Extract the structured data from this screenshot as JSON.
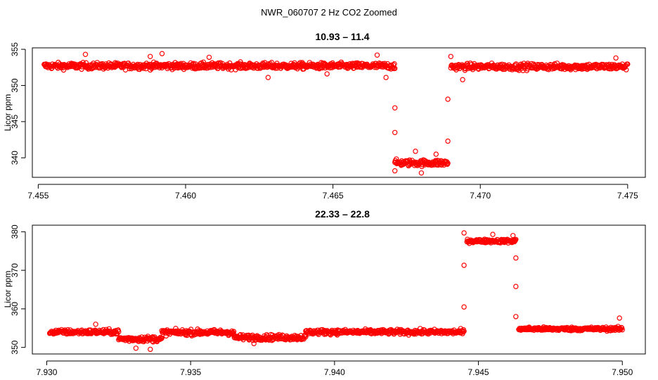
{
  "figure": {
    "title": "NWR_060707  2 Hz CO2 Zoomed",
    "marker_color": "#ff0000",
    "axis_color": "#000000",
    "background": "#ffffff"
  },
  "chart_data": [
    {
      "type": "scatter",
      "title": "10.93 – 11.4",
      "xlabel": "",
      "ylabel": "Licor ppm",
      "xlim": [
        7.4548,
        7.4756
      ],
      "ylim": [
        337.3,
        355.2
      ],
      "xticks": [
        7.455,
        7.46,
        7.465,
        7.47,
        7.475
      ],
      "xtick_labels": [
        "7.455",
        "7.460",
        "7.465",
        "7.470",
        "7.475"
      ],
      "yticks": [
        340,
        345,
        350,
        355
      ],
      "ytick_labels": [
        "340",
        "345",
        "350",
        "355"
      ],
      "marker": "open-circle",
      "grid": false,
      "legend": "none",
      "segments": [
        {
          "x_start": 7.4552,
          "x_end": 7.4671,
          "mean": 352.7,
          "spread": 0.55
        },
        {
          "x_start": 7.4671,
          "x_end": 7.4689,
          "mean": 339.3,
          "spread": 0.55
        },
        {
          "x_start": 7.469,
          "x_end": 7.475,
          "mean": 352.6,
          "spread": 0.55
        }
      ],
      "points": [
        [
          7.4566,
          354.3
        ],
        [
          7.4588,
          354.0
        ],
        [
          7.4592,
          354.4
        ],
        [
          7.4608,
          353.9
        ],
        [
          7.4628,
          351.1
        ],
        [
          7.4648,
          351.6
        ],
        [
          7.4665,
          354.2
        ],
        [
          7.4668,
          351.1
        ],
        [
          7.4671,
          346.9
        ],
        [
          7.4671,
          343.5
        ],
        [
          7.4671,
          338.2
        ],
        [
          7.468,
          337.9
        ],
        [
          7.4678,
          340.9
        ],
        [
          7.4685,
          340.5
        ],
        [
          7.4689,
          348.1
        ],
        [
          7.4689,
          342.3
        ],
        [
          7.469,
          354.0
        ],
        [
          7.4694,
          350.8
        ],
        [
          7.4746,
          353.8
        ]
      ]
    },
    {
      "type": "scatter",
      "title": "22.33 – 22.8",
      "xlabel": "",
      "ylabel": "Licor ppm",
      "xlim": [
        7.9295,
        7.9508
      ],
      "ylim": [
        348.3,
        381.7
      ],
      "xticks": [
        7.93,
        7.935,
        7.94,
        7.945,
        7.95
      ],
      "xtick_labels": [
        "7.930",
        "7.935",
        "7.940",
        "7.945",
        "7.950"
      ],
      "yticks": [
        350,
        360,
        370,
        380
      ],
      "ytick_labels": [
        "350",
        "360",
        "370",
        "380"
      ],
      "marker": "open-circle",
      "grid": false,
      "legend": "none",
      "segments": [
        {
          "x_start": 7.9301,
          "x_end": 7.9325,
          "mean": 354.0,
          "spread": 0.8
        },
        {
          "x_start": 7.9325,
          "x_end": 7.934,
          "mean": 352.2,
          "spread": 0.9
        },
        {
          "x_start": 7.934,
          "x_end": 7.9365,
          "mean": 353.9,
          "spread": 0.9
        },
        {
          "x_start": 7.9365,
          "x_end": 7.939,
          "mean": 352.6,
          "spread": 0.9
        },
        {
          "x_start": 7.939,
          "x_end": 7.9445,
          "mean": 354.0,
          "spread": 0.8
        },
        {
          "x_start": 7.9446,
          "x_end": 7.9463,
          "mean": 377.6,
          "spread": 0.6
        },
        {
          "x_start": 7.9464,
          "x_end": 7.95,
          "mean": 354.8,
          "spread": 0.6
        }
      ],
      "points": [
        [
          7.9317,
          356.0
        ],
        [
          7.9331,
          349.8
        ],
        [
          7.9336,
          349.5
        ],
        [
          7.9372,
          351.0
        ],
        [
          7.9445,
          360.5
        ],
        [
          7.9445,
          371.3
        ],
        [
          7.9445,
          379.7
        ],
        [
          7.9455,
          379.3
        ],
        [
          7.9462,
          379.0
        ],
        [
          7.9463,
          373.2
        ],
        [
          7.9463,
          365.8
        ],
        [
          7.9463,
          358.0
        ],
        [
          7.9499,
          357.6
        ]
      ]
    }
  ]
}
